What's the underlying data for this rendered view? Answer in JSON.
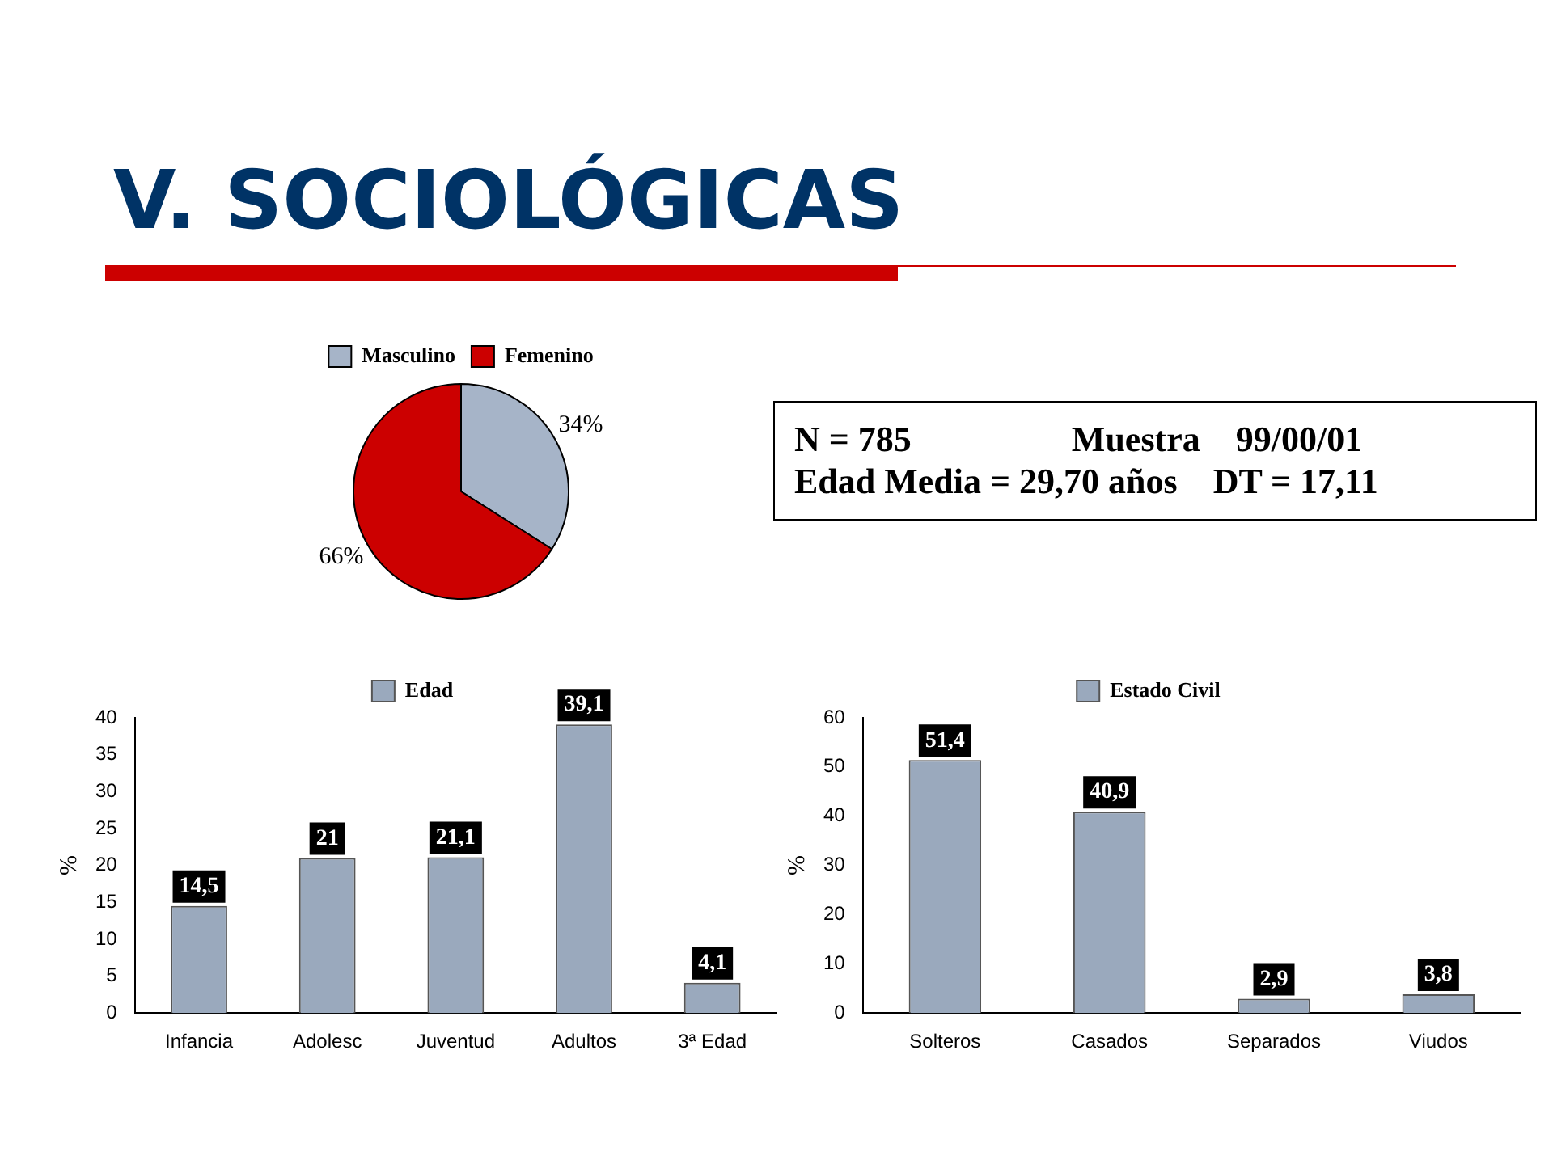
{
  "chart_data": [
    {
      "type": "other",
      "title": "V. SOCIOLÓGICAS",
      "annotations": [
        "N = 785                  Muestra    99/00/01",
        "Edad Media = 29,70 años    DT = 17,11"
      ]
    },
    {
      "type": "pie",
      "categories": [
        "Masculino",
        "Femenino"
      ],
      "values": [
        34,
        66
      ],
      "colors": [
        "#a6b4c8",
        "#cc0000"
      ],
      "value_labels": [
        "34%",
        "66%"
      ],
      "legend": "top"
    },
    {
      "type": "bar",
      "categories": [
        "Infancia",
        "Adolesc",
        "Juventud",
        "Adultos",
        "3ª Edad"
      ],
      "series": [
        {
          "name": "Edad",
          "color": "#9aa9bd",
          "values": [
            14.5,
            21,
            21.1,
            39.1,
            4.1
          ],
          "value_labels": [
            "14,5",
            "21",
            "21,1",
            "39,1",
            "4,1"
          ]
        }
      ],
      "ylabel": "%",
      "ylim": [
        0,
        40
      ],
      "yticks": [
        0,
        5,
        10,
        15,
        20,
        25,
        30,
        35,
        40
      ],
      "legend": "top",
      "grid": false
    },
    {
      "type": "bar",
      "categories": [
        "Solteros",
        "Casados",
        "Separados",
        "Viudos"
      ],
      "series": [
        {
          "name": "Estado Civil",
          "color": "#9aa9bd",
          "values": [
            51.4,
            40.9,
            2.9,
            3.8
          ],
          "value_labels": [
            "51,4",
            "40,9",
            "2,9",
            "3,8"
          ]
        }
      ],
      "ylabel": "%",
      "ylim": [
        0,
        60
      ],
      "yticks": [
        0,
        10,
        20,
        30,
        40,
        50,
        60
      ],
      "legend": "top",
      "grid": false
    }
  ]
}
